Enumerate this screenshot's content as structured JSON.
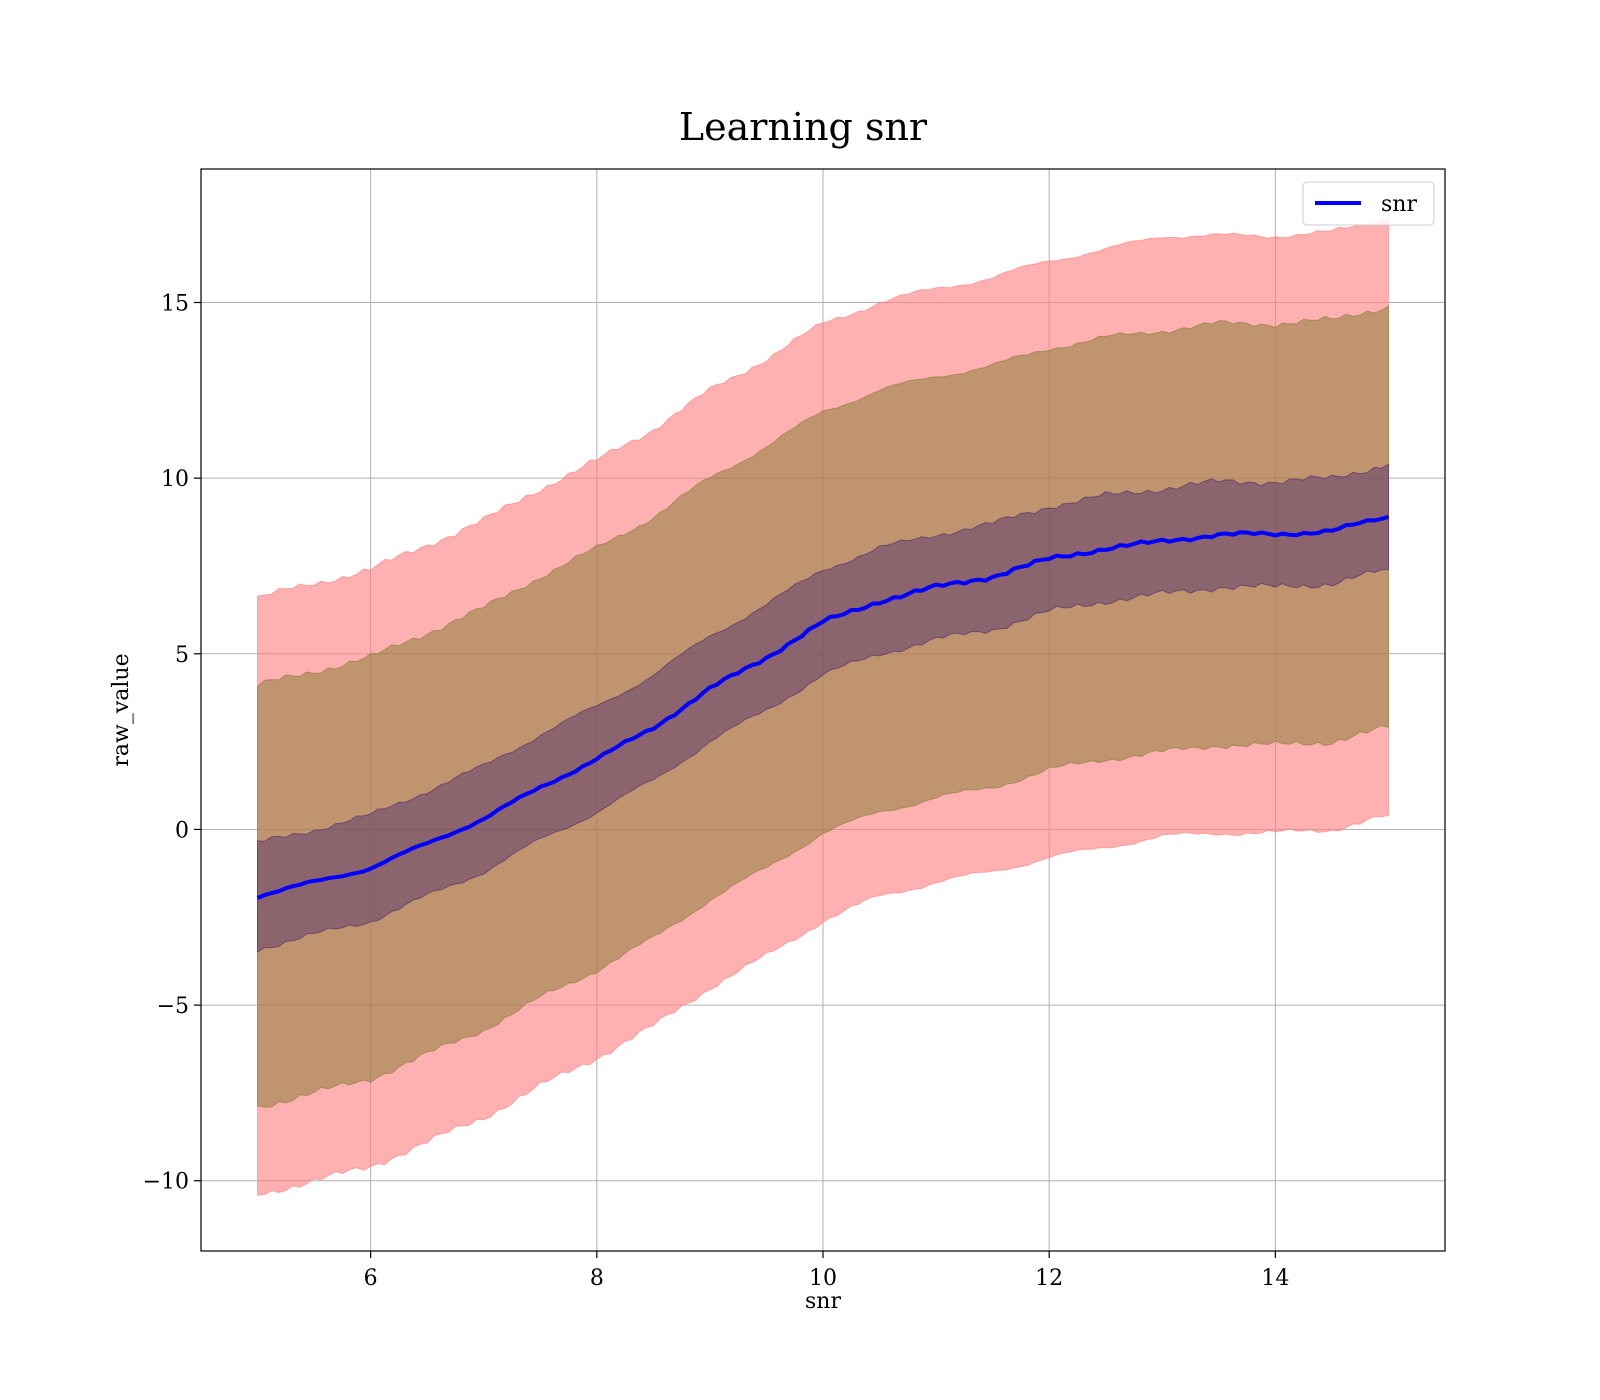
{
  "chart_data": {
    "type": "line",
    "title": "Learning snr",
    "xlabel": "snr",
    "ylabel": "raw_value",
    "xlim": [
      4.5,
      15.5
    ],
    "ylim": [
      -12,
      18.8
    ],
    "xticks": [
      6,
      8,
      10,
      12,
      14
    ],
    "yticks": [
      -10,
      -5,
      0,
      5,
      10,
      15
    ],
    "xtick_labels": [
      "6",
      "8",
      "10",
      "12",
      "14"
    ],
    "ytick_labels": [
      "−10",
      "−5",
      "0",
      "5",
      "10",
      "15"
    ],
    "grid": true,
    "legend": {
      "position": "top-right",
      "entries": [
        "snr"
      ]
    },
    "colors": {
      "line": "#0000ff",
      "band_outer": "#ff7f7f",
      "band_middle": "#8b7d3a",
      "band_inner": "#4b2a6b",
      "grid": "#b0b0b0"
    },
    "x": [
      5.0,
      5.5,
      6.0,
      6.5,
      7.0,
      7.5,
      8.0,
      8.5,
      9.0,
      9.5,
      10.0,
      10.5,
      11.0,
      11.5,
      12.0,
      12.5,
      13.0,
      13.5,
      14.0,
      14.5,
      15.0
    ],
    "series": [
      {
        "name": "snr",
        "values": [
          -1.9,
          -1.5,
          -1.1,
          -0.4,
          0.3,
          1.2,
          2.0,
          2.9,
          4.0,
          4.9,
          5.9,
          6.5,
          6.9,
          7.2,
          7.7,
          8.0,
          8.2,
          8.4,
          8.4,
          8.5,
          8.9
        ]
      }
    ],
    "bands": [
      {
        "lower": [
          -10.4,
          -10.0,
          -9.6,
          -8.9,
          -8.2,
          -7.3,
          -6.5,
          -5.6,
          -4.5,
          -3.6,
          -2.6,
          -1.9,
          -1.5,
          -1.2,
          -0.8,
          -0.5,
          -0.2,
          -0.1,
          -0.1,
          0.0,
          0.4
        ],
        "upper": [
          6.6,
          7.0,
          7.4,
          8.1,
          8.8,
          9.7,
          10.5,
          11.4,
          12.5,
          13.4,
          14.4,
          15.0,
          15.4,
          15.7,
          16.2,
          16.5,
          16.9,
          16.9,
          16.9,
          17.0,
          17.4
        ]
      },
      {
        "lower": [
          -7.9,
          -7.5,
          -7.1,
          -6.4,
          -5.7,
          -4.8,
          -4.0,
          -3.1,
          -2.0,
          -1.1,
          -0.1,
          0.5,
          0.9,
          1.2,
          1.7,
          2.0,
          2.2,
          2.4,
          2.4,
          2.5,
          2.9
        ],
        "upper": [
          4.1,
          4.5,
          4.9,
          5.6,
          6.3,
          7.2,
          8.0,
          8.9,
          10.0,
          10.9,
          11.9,
          12.5,
          12.9,
          13.2,
          13.7,
          14.0,
          14.2,
          14.4,
          14.4,
          14.5,
          14.9
        ]
      },
      {
        "lower": [
          -3.4,
          -3.0,
          -2.6,
          -1.9,
          -1.2,
          -0.3,
          0.5,
          1.4,
          2.5,
          3.4,
          4.4,
          5.0,
          5.4,
          5.7,
          6.2,
          6.5,
          6.7,
          6.9,
          6.9,
          7.0,
          7.4
        ],
        "upper": [
          -0.4,
          0.0,
          0.4,
          1.1,
          1.8,
          2.7,
          3.5,
          4.4,
          5.5,
          6.4,
          7.4,
          8.0,
          8.4,
          8.7,
          9.2,
          9.5,
          9.7,
          9.9,
          9.9,
          10.0,
          10.4
        ]
      }
    ]
  }
}
